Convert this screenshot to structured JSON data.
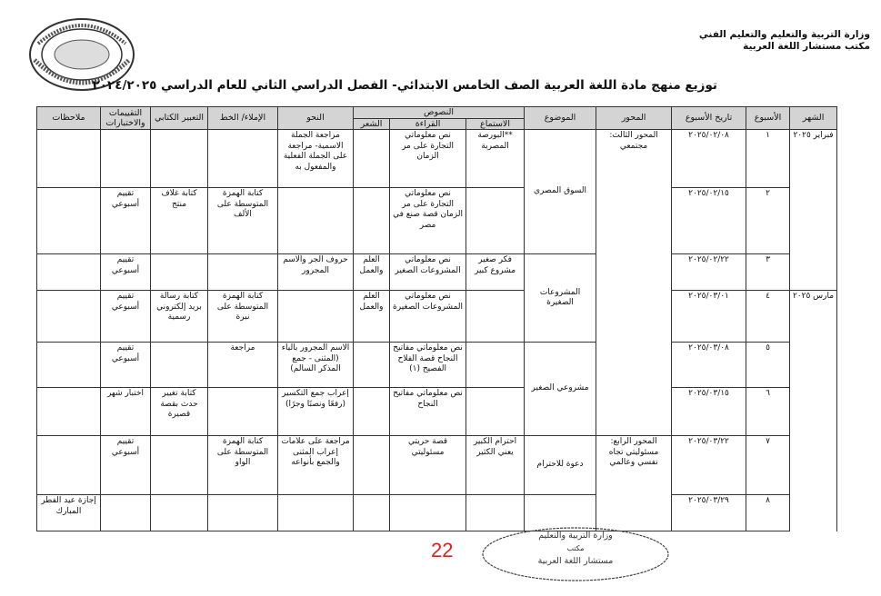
{
  "header": {
    "ministry": "وزارة التربية والتعليم والتعليم الفني",
    "office": "مكتب مستشار اللغة العربية",
    "title": "توزيع منهج مادة اللغة العربية الصف الخامس الابتدائي- الفصل الدراسي الثاني للعام الدراسي ٢٠٢٤/٢٠٢٥"
  },
  "logo_text": "MINISTRY OF EDUCATION AND TECHNICAL EDUCATION",
  "columns": {
    "month": "الشهر",
    "week": "الأسبوع",
    "date": "تاريخ الأسبوع",
    "axis": "المحور",
    "topic": "الموضوع",
    "texts": "النصوص",
    "listening": "الاستماع",
    "reading": "القراءة",
    "poetry": "الشعر",
    "grammar": "النحو",
    "dictation": "الإملاء/ الخط",
    "writing": "التعبير الكتابي",
    "assessment": "التقييمات والاختبارات",
    "notes": "ملاحظات"
  },
  "rows": [
    {
      "month": "فبراير ٢٠٢٥",
      "week": "١",
      "date": "٢٠٢٥/٠٢/٠٨",
      "axis": "المحور الثالث: مجتمعي",
      "topic": "السوق المصري",
      "listening": "**البورصة المصرية",
      "reading": "نص معلوماتي التجارة على مر الزمان",
      "poetry": "",
      "grammar": "مراجعة الجملة الاسمية- مراجعة على الجملة الفعلية والمفعول به",
      "dictation": "",
      "writing": "",
      "assessment": "",
      "notes": ""
    },
    {
      "week": "٢",
      "date": "٢٠٢٥/٠٢/١٥",
      "listening": "",
      "reading": "نص معلوماتي التجارة على مر الزمان قصة صنع في مصر",
      "poetry": "",
      "grammar": "",
      "dictation": "كتابة الهمزة المتوسطة على الألف",
      "writing": "كتابة غلاف منتج",
      "assessment": "تقييم أسبوعي",
      "notes": ""
    },
    {
      "week": "٣",
      "date": "٢٠٢٥/٠٢/٢٢",
      "topic": "المشروعات الصغيرة",
      "listening": "فكر صغير مشروع كبير",
      "reading": "نص معلوماتي المشروعات الصغير",
      "poetry": "العلم والعمل",
      "grammar": "حروف الجر والاسم المجرور",
      "dictation": "",
      "writing": "",
      "assessment": "تقييم أسبوعي",
      "notes": ""
    },
    {
      "month": "مارس ٢٠٢٥",
      "week": "٤",
      "date": "٢٠٢٥/٠٣/٠١",
      "listening": "",
      "reading": "نص معلوماتي المشروعات الصغيرة",
      "poetry": "العلم والعمل",
      "grammar": "",
      "dictation": "كتابة الهمزة المتوسطة على نبرة",
      "writing": "كتابة رسالة بريد إلكتروني رسمية",
      "assessment": "تقييم أسبوعي",
      "notes": ""
    },
    {
      "week": "٥",
      "date": "٢٠٢٥/٠٣/٠٨",
      "topic": "مشروعي الصغير",
      "listening": "",
      "reading": "نص معلوماتي مفاتيح النجاح قصة الفلاح الفصيح (١)",
      "poetry": "",
      "grammar": "الاسم المجرور بالياء (المثنى - جمع المذكر السالم)",
      "dictation": "مراجعة",
      "writing": "",
      "assessment": "تقييم أسبوعي",
      "notes": ""
    },
    {
      "week": "٦",
      "date": "٢٠٢٥/٠٣/١٥",
      "listening": "",
      "reading": "نص معلوماتي مفاتيح النجاح",
      "poetry": "",
      "grammar": "إعراب جمع التكسير (رفعًا ونصبًا وجرًا)",
      "dictation": "",
      "writing": "كتابة تغيير حدث بقصة قصيرة",
      "assessment": "اختبار شهر",
      "notes": ""
    },
    {
      "week": "٧",
      "date": "٢٠٢٥/٠٣/٢٢",
      "axis": "المحور الرابع: مسئوليتي تجاه نفسي وعالمي",
      "topic": "دعوة للاحترام",
      "listening": "احترام الكبير يعني الكثير",
      "reading": "قصة حريتي مسئوليتي",
      "poetry": "",
      "grammar": "مراجعة على علامات إعراب المثنى والجمع بأنواعه",
      "dictation": "كتابة الهمزة المتوسطة على الواو",
      "writing": "",
      "assessment": "تقييم أسبوعي",
      "notes": ""
    },
    {
      "week": "٨",
      "date": "٢٠٢٥/٠٣/٢٩",
      "topic": "",
      "listening": "",
      "reading": "",
      "poetry": "",
      "grammar": "",
      "dictation": "",
      "writing": "",
      "assessment": "",
      "notes": "إجازة عيد الفطر المبارك"
    }
  ],
  "page_number": "22",
  "stamp": {
    "line1": "وزارة التربية والتعليم",
    "line2": "مكتب",
    "line3": "مستشار اللغة العربية"
  },
  "colors": {
    "page_number": "#e0201c",
    "header_fill": "#d4d4d4"
  }
}
